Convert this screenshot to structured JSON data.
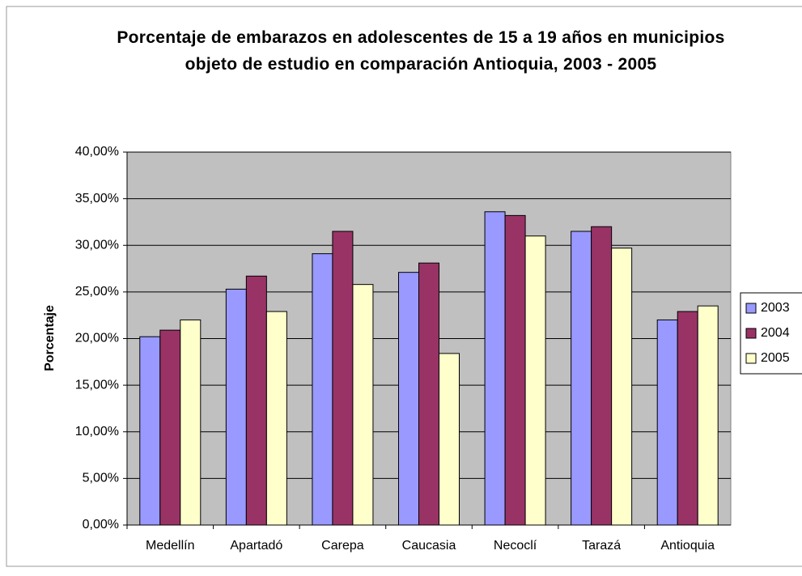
{
  "chart_data": {
    "type": "bar",
    "title": "Porcentaje de embarazos en adolescentes de 15 a 19 años en municipios objeto de estudio en comparación Antioquia, 2003 - 2005",
    "y_label": "Porcentaje",
    "categories": [
      "Medellín",
      "Apartadó",
      "Carepa",
      "Caucasia",
      "Necoclí",
      "Tarazá",
      "Antioquia"
    ],
    "series": [
      {
        "name": "2003",
        "color": "#9999ff",
        "values": [
          20.2,
          25.3,
          29.1,
          27.1,
          33.6,
          31.5,
          22.0
        ]
      },
      {
        "name": "2004",
        "color": "#993366",
        "values": [
          20.9,
          26.7,
          31.5,
          28.1,
          33.2,
          32.0,
          22.9
        ]
      },
      {
        "name": "2005",
        "color": "#ffffcc",
        "values": [
          22.0,
          22.9,
          25.8,
          18.4,
          31.0,
          29.7,
          23.5
        ]
      }
    ],
    "ylim": [
      0,
      40
    ],
    "yticks": [
      {
        "value": 0,
        "label": "0,00%"
      },
      {
        "value": 5,
        "label": "5,00%"
      },
      {
        "value": 10,
        "label": "10,00%"
      },
      {
        "value": 15,
        "label": "15,00%"
      },
      {
        "value": 20,
        "label": "20,00%"
      },
      {
        "value": 25,
        "label": "25,00%"
      },
      {
        "value": 30,
        "label": "30,00%"
      },
      {
        "value": 35,
        "label": "35,00%"
      },
      {
        "value": 40,
        "label": "40,00%"
      }
    ],
    "grid": true,
    "legend": "right"
  }
}
